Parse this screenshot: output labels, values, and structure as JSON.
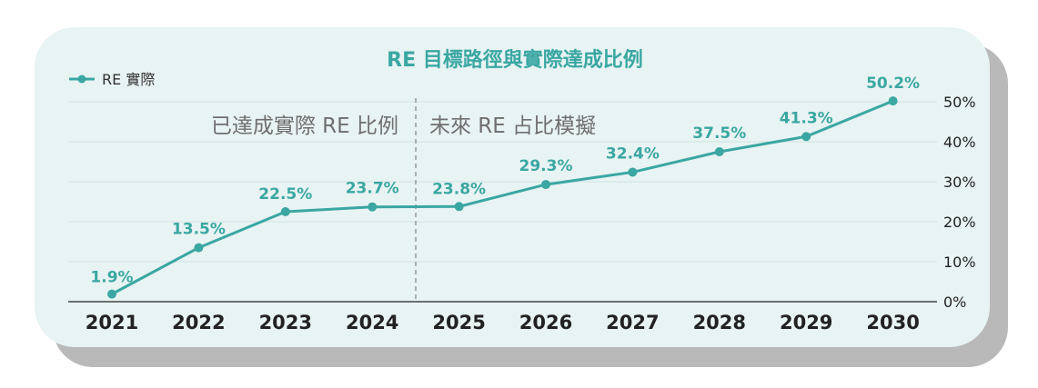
{
  "colors": {
    "accent": "#3aa7a2",
    "background": "#e8f3f3",
    "shadow": "#b9b9b9"
  },
  "chart_data": {
    "type": "line",
    "title": "RE 目標路徑與實際達成比例",
    "legend": {
      "label": "RE 實際",
      "position": "top-left"
    },
    "section_labels": {
      "actual": "已達成實際 RE 比例",
      "projected": "未來 RE 占比模擬"
    },
    "categories": [
      "2021",
      "2022",
      "2023",
      "2024",
      "2025",
      "2026",
      "2027",
      "2028",
      "2029",
      "2030"
    ],
    "series": [
      {
        "name": "RE 實際",
        "values": [
          1.9,
          13.5,
          22.5,
          23.7,
          23.8,
          29.3,
          32.4,
          37.5,
          41.3,
          50.2
        ]
      }
    ],
    "data_labels": [
      "1.9%",
      "13.5%",
      "22.5%",
      "23.7%",
      "23.8%",
      "29.3%",
      "32.4%",
      "37.5%",
      "41.3%",
      "50.2%"
    ],
    "y_axis": {
      "position": "right",
      "ticks": [
        "0%",
        "10%",
        "20%",
        "30%",
        "40%",
        "50%"
      ],
      "tick_values": [
        0,
        10,
        20,
        30,
        40,
        50
      ]
    },
    "ylim": [
      0,
      50
    ],
    "divider_between": [
      "2024",
      "2025"
    ],
    "grid": true
  }
}
